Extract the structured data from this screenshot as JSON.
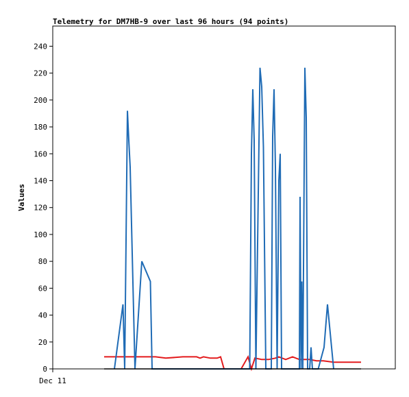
{
  "chart_data": {
    "type": "line",
    "title": "Telemetry for DM7HB-9 over last 96 hours (94 points)",
    "xlabel": "",
    "ylabel": "Values",
    "ylim": [
      0,
      255
    ],
    "xlim": [
      0,
      100
    ],
    "yticks": [
      0,
      20,
      40,
      60,
      80,
      100,
      120,
      140,
      160,
      180,
      200,
      220,
      240
    ],
    "xtick_labels": [
      {
        "x": 0,
        "label": "Dec 11"
      }
    ],
    "grid": false,
    "legend": "none",
    "series": [
      {
        "color": "#e31a1c",
        "points": [
          [
            15,
            9
          ],
          [
            23,
            9
          ],
          [
            30,
            9
          ],
          [
            33,
            8
          ],
          [
            38,
            9
          ],
          [
            42,
            9
          ],
          [
            43,
            8
          ],
          [
            44,
            9
          ],
          [
            46,
            8
          ],
          [
            48,
            8
          ],
          [
            49,
            9
          ],
          [
            50,
            0
          ],
          [
            55,
            0
          ],
          [
            57,
            9
          ],
          [
            58,
            0
          ],
          [
            59,
            8
          ],
          [
            61,
            7
          ],
          [
            63,
            7
          ],
          [
            65,
            8
          ],
          [
            66,
            9
          ],
          [
            68,
            7
          ],
          [
            70,
            9
          ],
          [
            72,
            7
          ],
          [
            75,
            7
          ],
          [
            77,
            6
          ],
          [
            79,
            6
          ],
          [
            82,
            5
          ],
          [
            86,
            5
          ],
          [
            90,
            5
          ]
        ]
      },
      {
        "color": "#1f6bb5",
        "points": [
          [
            18,
            0
          ],
          [
            20.5,
            48
          ],
          [
            21,
            0
          ],
          [
            21.8,
            192
          ],
          [
            22.2,
            170
          ],
          [
            22.6,
            150
          ],
          [
            24,
            0
          ],
          [
            26,
            80
          ],
          [
            28.5,
            65
          ],
          [
            29,
            0
          ],
          [
            57.5,
            0
          ],
          [
            58,
            160
          ],
          [
            58.4,
            208
          ],
          [
            58.8,
            170
          ],
          [
            59.3,
            0
          ],
          [
            60.5,
            224
          ],
          [
            61,
            210
          ],
          [
            61.5,
            165
          ],
          [
            62.2,
            0
          ],
          [
            63.8,
            0
          ],
          [
            64.2,
            173
          ],
          [
            64.6,
            208
          ],
          [
            65,
            150
          ],
          [
            65.5,
            0
          ],
          [
            66,
            140
          ],
          [
            66.4,
            160
          ],
          [
            66.8,
            0
          ],
          [
            72,
            0
          ],
          [
            72.2,
            128
          ],
          [
            72.5,
            0
          ],
          [
            72.7,
            65
          ],
          [
            73,
            0
          ],
          [
            73.6,
            224
          ],
          [
            74,
            187
          ],
          [
            74.4,
            0
          ],
          [
            75,
            0
          ],
          [
            75.4,
            16
          ],
          [
            75.8,
            0
          ],
          [
            77.5,
            0
          ],
          [
            79.2,
            16
          ],
          [
            80.2,
            48
          ],
          [
            82,
            0
          ]
        ]
      },
      {
        "color": "#000000",
        "points": [
          [
            15,
            0
          ],
          [
            90,
            0
          ]
        ]
      }
    ]
  }
}
